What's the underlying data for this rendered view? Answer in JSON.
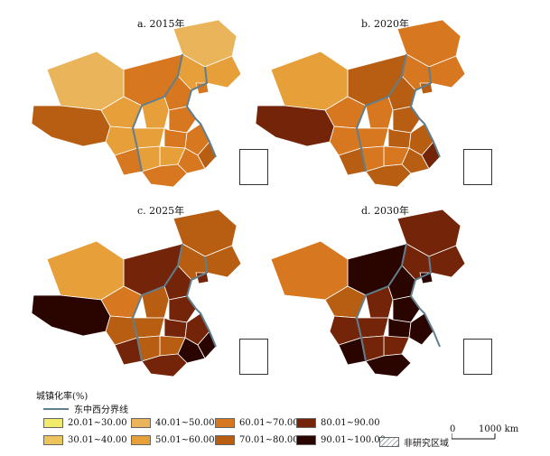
{
  "panels": [
    {
      "title": "a. 2015年",
      "classes": [
        2,
        3,
        3,
        4,
        4,
        2,
        3,
        3,
        4,
        3,
        4,
        4,
        5,
        4,
        3,
        3,
        4,
        4,
        3,
        4,
        5
      ]
    },
    {
      "title": "b. 2020年",
      "classes": [
        4,
        4,
        4,
        5,
        5,
        3,
        4,
        4,
        5,
        4,
        5,
        5,
        6,
        5,
        4,
        4,
        5,
        5,
        4,
        5,
        6
      ]
    },
    {
      "title": "c. 2025年",
      "classes": [
        5,
        5,
        5,
        6,
        6,
        3,
        4,
        5,
        6,
        5,
        6,
        6,
        7,
        7,
        5,
        5,
        6,
        6,
        5,
        6,
        7
      ]
    },
    {
      "title": "d. 2030年",
      "classes": [
        6,
        6,
        6,
        7,
        7,
        4,
        5,
        6,
        7,
        6,
        7,
        7,
        8,
        8,
        6,
        6,
        7,
        7,
        6,
        7,
        8
      ]
    }
  ],
  "legend": {
    "title": "城镇化率(%)",
    "line_label": "东中西分界线",
    "items": [
      {
        "label": "20.01~30.00",
        "color": "#f2ea6a"
      },
      {
        "label": "30.01~40.00",
        "color": "#edc35b"
      },
      {
        "label": "40.01~50.00",
        "color": "#eab45a"
      },
      {
        "label": "50.01~60.00",
        "color": "#e79f3a"
      },
      {
        "label": "60.01~70.00",
        "color": "#d7771f"
      },
      {
        "label": "70.01~80.00",
        "color": "#b85e12"
      },
      {
        "label": "80.01~90.00",
        "color": "#742408"
      },
      {
        "label": "90.01~100.00",
        "color": "#2a0500"
      },
      {
        "label": "非研究区域",
        "color": "#ffffff"
      }
    ]
  },
  "scalebar": {
    "zero": "0",
    "label": "1000 km"
  },
  "colors": {
    "boundary": "#5f7f8f"
  }
}
